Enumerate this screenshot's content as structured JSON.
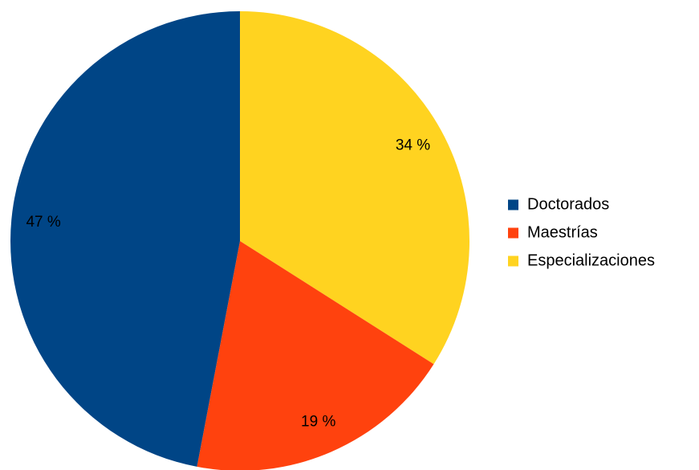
{
  "chart_data": {
    "type": "pie",
    "title": "",
    "categories": [
      "Doctorados",
      "Maestrías",
      "Especializaciones"
    ],
    "values": [
      47,
      19,
      34
    ],
    "data_labels": [
      "47 %",
      "19 %",
      "34 %"
    ],
    "colors": [
      "#004586",
      "#ff420e",
      "#ffd320"
    ],
    "legend": {
      "placement": "right",
      "entries": [
        "Doctorados",
        "Maestrías",
        "Especializaciones"
      ]
    }
  }
}
